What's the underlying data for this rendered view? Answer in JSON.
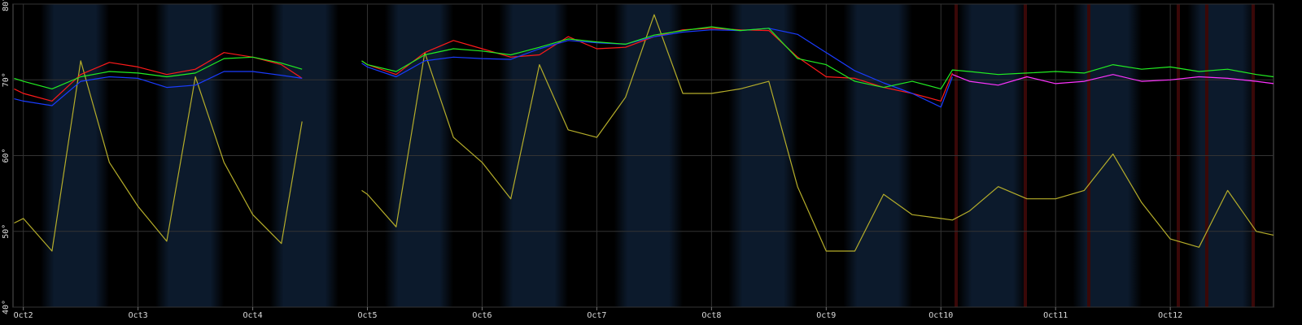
{
  "chart_data": {
    "type": "line",
    "x": [
      1.92,
      2.0,
      2.25,
      2.5,
      2.75,
      3.0,
      3.25,
      3.5,
      3.75,
      4.0,
      4.25,
      4.43,
      4.75,
      4.95,
      5.0,
      5.25,
      5.5,
      5.75,
      6.0,
      6.25,
      6.5,
      6.75,
      7.0,
      7.25,
      7.5,
      7.75,
      8.0,
      8.25,
      8.5,
      8.75,
      9.0,
      9.25,
      9.5,
      9.75,
      10.0,
      10.1,
      10.25,
      10.5,
      10.75,
      11.0,
      11.25,
      11.5,
      11.75,
      12.0,
      12.25,
      12.5,
      12.75,
      12.9
    ],
    "series": [
      {
        "color": "#b5ad2a",
        "values": [
          51.1,
          51.7,
          47.4,
          72.5,
          59.1,
          53.3,
          48.7,
          70.4,
          59.1,
          52.2,
          48.4,
          64.5,
          null,
          55.4,
          54.9,
          50.6,
          73.6,
          62.4,
          59.1,
          54.3,
          72.0,
          63.4,
          62.4,
          67.7,
          78.6,
          68.2,
          68.2,
          68.8,
          69.8,
          55.9,
          47.4,
          47.4,
          54.9,
          52.2,
          51.7,
          51.5,
          52.7,
          55.9,
          54.3,
          54.3,
          55.4,
          60.2,
          53.8,
          49.0,
          47.9,
          55.4,
          50.0,
          49.5
        ]
      },
      {
        "color": "#ff1a1a",
        "values": [
          68.8,
          68.2,
          67.2,
          70.7,
          72.3,
          71.7,
          70.7,
          71.4,
          73.6,
          73.0,
          72.0,
          70.2,
          null,
          72.5,
          72.0,
          70.7,
          73.6,
          75.2,
          74.1,
          73.0,
          73.3,
          75.7,
          74.1,
          74.3,
          75.7,
          76.6,
          76.8,
          76.6,
          76.5,
          73.0,
          70.4,
          70.2,
          69.0,
          68.2,
          67.2,
          70.9,
          null,
          null,
          null,
          null,
          null,
          null,
          null,
          null,
          null,
          null,
          null,
          null
        ]
      },
      {
        "color": "#1a3cff",
        "values": [
          67.5,
          67.2,
          66.6,
          69.8,
          70.4,
          70.2,
          69.0,
          69.3,
          71.1,
          71.1,
          70.6,
          70.2,
          null,
          72.2,
          71.7,
          70.4,
          72.5,
          73.0,
          72.8,
          72.7,
          74.1,
          75.2,
          74.9,
          74.7,
          75.7,
          76.3,
          76.6,
          76.5,
          76.8,
          76.0,
          73.6,
          71.2,
          69.6,
          68.2,
          66.4,
          70.4,
          null,
          null,
          null,
          null,
          null,
          null,
          null,
          null,
          null,
          null,
          null,
          null
        ]
      },
      {
        "color": "#ff33ff",
        "values": [
          null,
          null,
          null,
          null,
          null,
          null,
          null,
          null,
          null,
          null,
          null,
          null,
          null,
          null,
          null,
          null,
          null,
          null,
          null,
          null,
          null,
          null,
          null,
          null,
          null,
          null,
          null,
          null,
          null,
          null,
          null,
          null,
          null,
          null,
          null,
          70.7,
          69.8,
          69.3,
          70.4,
          69.5,
          69.8,
          70.7,
          69.8,
          70.0,
          70.4,
          70.2,
          69.8,
          69.5
        ]
      },
      {
        "color": "#22ee22",
        "values": [
          70.2,
          69.8,
          68.8,
          70.4,
          71.1,
          70.9,
          70.4,
          70.9,
          72.8,
          73.0,
          72.2,
          71.4,
          null,
          72.5,
          72.0,
          71.1,
          73.3,
          74.1,
          73.8,
          73.3,
          74.3,
          75.4,
          75.0,
          74.7,
          75.9,
          76.5,
          77.0,
          76.5,
          76.8,
          72.8,
          72.0,
          69.8,
          69.0,
          69.8,
          68.8,
          71.3,
          71.1,
          70.7,
          70.9,
          71.1,
          70.9,
          72.0,
          71.4,
          71.7,
          71.1,
          71.4,
          70.7,
          70.4
        ]
      }
    ],
    "xlim": [
      1.91,
      12.9
    ],
    "xticks": [
      {
        "value": 2,
        "label": "Oct2"
      },
      {
        "value": 3,
        "label": "Oct3"
      },
      {
        "value": 4,
        "label": "Oct4"
      },
      {
        "value": 5,
        "label": "Oct5"
      },
      {
        "value": 6,
        "label": "Oct6"
      },
      {
        "value": 7,
        "label": "Oct7"
      },
      {
        "value": 8,
        "label": "Oct8"
      },
      {
        "value": 9,
        "label": "Oct9"
      },
      {
        "value": 10,
        "label": "Oct10"
      },
      {
        "value": 11,
        "label": "Oct11"
      },
      {
        "value": 12,
        "label": "Oct12"
      }
    ],
    "ylim": [
      40,
      80
    ],
    "yticks": [
      {
        "value": 40,
        "label": "40°"
      },
      {
        "value": 50,
        "label": "50°"
      },
      {
        "value": 60,
        "label": "60°"
      },
      {
        "value": 70,
        "label": "70°"
      },
      {
        "value": 80,
        "label": "80°"
      }
    ],
    "grid": true
  }
}
